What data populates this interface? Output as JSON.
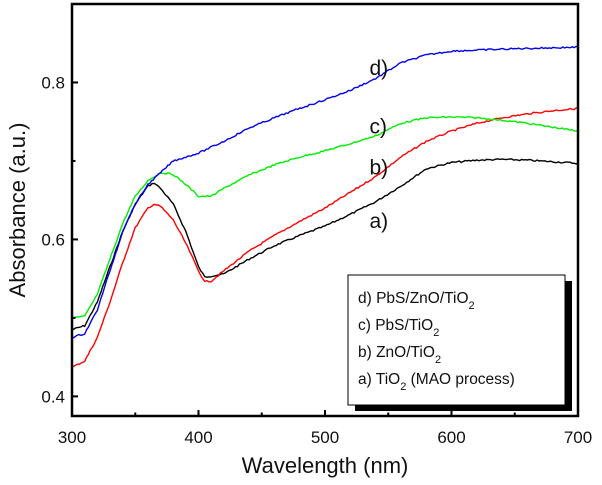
{
  "chart_data": {
    "type": "line",
    "title": "",
    "xlabel": "Wavelength (nm)",
    "ylabel": "Absorbance (a.u.)",
    "xlim": [
      300,
      700
    ],
    "ylim": [
      0.375,
      0.9
    ],
    "xticks": [
      300,
      400,
      500,
      600,
      700
    ],
    "xtick_labels": [
      "300",
      "400",
      "500",
      "600",
      "700"
    ],
    "x_minor_ticks": [
      350,
      450,
      550,
      650
    ],
    "yticks": [
      0.4,
      0.6,
      0.8
    ],
    "ytick_labels": [
      "0.4",
      "0.6",
      "0.8"
    ],
    "y_minor_ticks": [
      0.5,
      0.7
    ],
    "grid": false,
    "legend_position": "bottom-right",
    "legend": [
      {
        "prefix": "d) PbS/ZnO/TiO",
        "sub": "2",
        "suffix": ""
      },
      {
        "prefix": "c) PbS/TiO",
        "sub": "2",
        "suffix": ""
      },
      {
        "prefix": "b) ZnO/TiO",
        "sub": "2",
        "suffix": ""
      },
      {
        "prefix": "a) TiO",
        "sub": "2",
        "suffix": " (MAO process)"
      }
    ],
    "series": [
      {
        "name": "a) TiO2 (MAO process)",
        "label": "a)",
        "color": "#000000",
        "x": [
          300,
          310,
          320,
          330,
          340,
          350,
          360,
          365,
          370,
          380,
          390,
          400,
          405,
          420,
          440,
          460,
          480,
          500,
          520,
          540,
          560,
          580,
          600,
          620,
          640,
          660,
          680,
          700
        ],
        "y": [
          0.485,
          0.49,
          0.52,
          0.565,
          0.61,
          0.645,
          0.668,
          0.672,
          0.665,
          0.645,
          0.61,
          0.565,
          0.552,
          0.556,
          0.575,
          0.592,
          0.605,
          0.617,
          0.632,
          0.648,
          0.668,
          0.69,
          0.698,
          0.701,
          0.702,
          0.701,
          0.699,
          0.697
        ],
        "label_at": [
          547,
          0.625
        ]
      },
      {
        "name": "b) ZnO/TiO2",
        "label": "b)",
        "color": "#ff0000",
        "x": [
          300,
          310,
          320,
          330,
          340,
          350,
          360,
          365,
          370,
          380,
          390,
          400,
          405,
          410,
          420,
          440,
          460,
          480,
          500,
          520,
          540,
          560,
          580,
          600,
          620,
          640,
          660,
          680,
          700
        ],
        "y": [
          0.437,
          0.445,
          0.475,
          0.52,
          0.57,
          0.615,
          0.64,
          0.645,
          0.642,
          0.625,
          0.595,
          0.56,
          0.546,
          0.547,
          0.56,
          0.585,
          0.605,
          0.623,
          0.64,
          0.66,
          0.68,
          0.705,
          0.725,
          0.738,
          0.748,
          0.755,
          0.76,
          0.764,
          0.767
        ],
        "label_at": [
          547,
          0.693
        ]
      },
      {
        "name": "c) PbS/TiO2",
        "label": "c)",
        "color": "#00ee00",
        "x": [
          300,
          310,
          320,
          330,
          340,
          350,
          360,
          370,
          380,
          390,
          400,
          410,
          420,
          440,
          460,
          480,
          500,
          520,
          540,
          560,
          580,
          600,
          620,
          640,
          660,
          680,
          700
        ],
        "y": [
          0.5,
          0.502,
          0.53,
          0.575,
          0.62,
          0.655,
          0.675,
          0.685,
          0.683,
          0.67,
          0.655,
          0.655,
          0.665,
          0.682,
          0.695,
          0.705,
          0.713,
          0.722,
          0.732,
          0.748,
          0.755,
          0.756,
          0.755,
          0.752,
          0.748,
          0.743,
          0.738
        ],
        "label_at": [
          547,
          0.745
        ]
      },
      {
        "name": "d) PbS/ZnO/TiO2",
        "label": "d)",
        "color": "#0000ee",
        "x": [
          300,
          310,
          320,
          330,
          340,
          350,
          360,
          370,
          380,
          390,
          400,
          420,
          440,
          460,
          480,
          500,
          520,
          540,
          560,
          580,
          600,
          650,
          700
        ],
        "y": [
          0.475,
          0.48,
          0.51,
          0.56,
          0.61,
          0.645,
          0.67,
          0.685,
          0.7,
          0.705,
          0.71,
          0.725,
          0.742,
          0.755,
          0.767,
          0.778,
          0.79,
          0.805,
          0.825,
          0.835,
          0.84,
          0.843,
          0.845
        ],
        "label_at": [
          547,
          0.82
        ]
      }
    ]
  }
}
